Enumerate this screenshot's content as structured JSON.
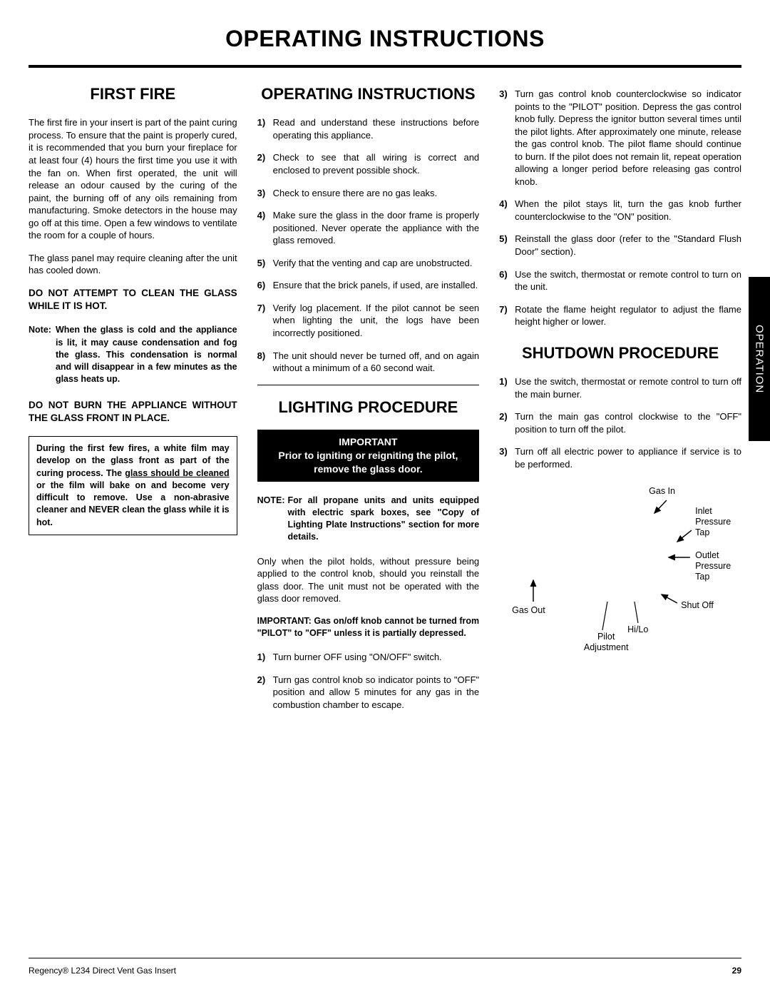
{
  "pageTitle": "OPERATING INSTRUCTIONS",
  "sideTab": "OPERATION",
  "footer": {
    "left": "Regency® L234 Direct Vent Gas Insert",
    "page": "29"
  },
  "firstFire": {
    "heading": "FIRST FIRE",
    "p1": "The first fire in your insert is part of the paint curing process. To ensure that the paint is properly cured, it is recommended that you burn your fireplace for at least four (4) hours the first time you use it with the fan on. When first operated, the unit will release an odour caused by the curing of the paint, the burning off of any oils remaining from manufacturing. Smoke detectors in the house may go off at this time. Open a few windows to ventilate the room for a couple of hours.",
    "p2": "The glass panel may require cleaning after the unit has cooled down.",
    "warn1": "DO NOT ATTEMPT TO CLEAN THE GLASS WHILE IT IS HOT.",
    "noteLabel": "Note:",
    "noteText": "When the glass is cold and the appliance is lit, it may cause condensation and fog the glass. This condensation is normal and will disappear in a few minutes as the glass heats up.",
    "warn2": "DO NOT BURN THE APPLIANCE WITHOUT THE GLASS FRONT IN PLACE.",
    "boxed_a": "During the first few fires, a white film may develop on the glass front as part of the curing process. The ",
    "boxed_u": "glass should be cleaned",
    "boxed_b": " or the film will bake on and become very difficult to remove. Use a non-abrasive cleaner and NEVER clean the glass while it is hot."
  },
  "operating": {
    "heading": "OPERATING INSTRUCTIONS",
    "items": [
      "Read and understand these instructions before operating this appliance.",
      "Check to see that all wiring is correct and enclosed to prevent possible shock.",
      "Check to ensure there are no gas leaks.",
      "Make sure the glass in the door frame is properly positioned. Never operate the appliance with the glass removed.",
      "Verify that the venting and cap are unobstructed.",
      "Ensure that the brick panels, if used, are installed.",
      "Verify log placement. If the pilot cannot be seen when lighting the unit, the logs have been incorrectly positioned.",
      "The unit should never be turned off, and on again without a minimum of a 60 second wait."
    ]
  },
  "lighting": {
    "heading": "LIGHTING PROCEDURE",
    "impHeader": "IMPORTANT",
    "impBody": "Prior to igniting or reigniting the pilot, remove the glass door.",
    "noteLabel": "NOTE:",
    "noteText": "For all propane units and units equipped with electric spark boxes, see \"Copy of Lighting Plate Instructions\" section for more details.",
    "p1": "Only when the pilot holds, without pressure being applied to the control knob, should you reinstall the glass door. The unit must not be operated with the glass door removed.",
    "impNote": "IMPORTANT: Gas on/off knob cannot be turned from \"PILOT\" to \"OFF\" unless it is partially depressed.",
    "items12": [
      "Turn burner OFF using \"ON/OFF\" switch.",
      "Turn gas control knob so indicator points to \"OFF\" position and allow 5 minutes for any gas in the combustion chamber to escape."
    ]
  },
  "col3list": [
    "Turn gas control knob counterclockwise so indicator points to the \"PILOT\" position. Depress the gas control knob fully. Depress the ignitor button several times until the pilot lights. After approximately one minute, release the gas control knob. The pilot flame should continue to burn. If the pilot does not remain lit, repeat operation allowing a longer period before releasing gas control knob.",
    "When the pilot stays lit, turn the gas knob further counterclockwise to the \"ON\" position.",
    "Reinstall the glass door (refer to the \"Standard Flush Door\" section).",
    "Use the switch, thermostat or remote control to turn on the unit.",
    "Rotate the flame height regulator to adjust the flame height higher or lower."
  ],
  "shutdown": {
    "heading": "SHUTDOWN PROCEDURE",
    "items": [
      "Use the switch, thermostat or remote control to turn off the main burner.",
      "Turn the main gas control clockwise to the \"OFF\" position to turn off the pilot.",
      "Turn off all electric power to appliance if service is to be performed."
    ]
  },
  "diagram": {
    "gasIn": "Gas In",
    "inletPressureTap": "Inlet Pressure Tap",
    "outletPressureTap": "Outlet Pressure Tap",
    "gasOut": "Gas Out",
    "pilotAdjustment": "Pilot Adjustment",
    "hiLo": "Hi/Lo",
    "shutOff": "Shut Off"
  }
}
